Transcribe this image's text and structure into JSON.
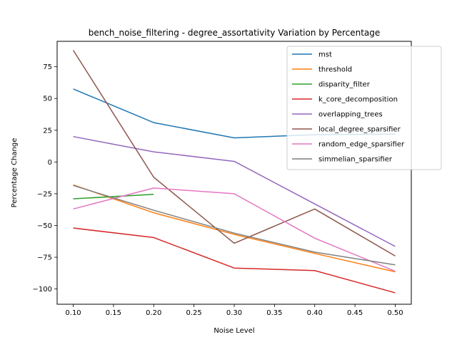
{
  "chart_data": {
    "type": "line",
    "title": "bench_noise_filtering - degree_assortativity Variation by Percentage",
    "xlabel": "Noise Level",
    "ylabel": "Percentage Change",
    "xlim": [
      0.08,
      0.52
    ],
    "ylim": [
      -112,
      95
    ],
    "xticks": [
      0.1,
      0.15,
      0.2,
      0.25,
      0.3,
      0.35,
      0.4,
      0.45,
      0.5
    ],
    "xtick_labels": [
      "0.10",
      "0.15",
      "0.20",
      "0.25",
      "0.30",
      "0.35",
      "0.40",
      "0.45",
      "0.50"
    ],
    "yticks": [
      -100,
      -75,
      -50,
      -25,
      0,
      25,
      50,
      75
    ],
    "ytick_labels": [
      "−100",
      "−75",
      "−50",
      "−25",
      "0",
      "25",
      "50",
      "75"
    ],
    "grid": false,
    "legend_position": "top-right",
    "series": [
      {
        "name": "mst",
        "color": "#1f77b4",
        "x": [
          0.1,
          0.2,
          0.3,
          0.4,
          0.5
        ],
        "y": [
          57.5,
          31,
          19,
          21.5,
          22
        ]
      },
      {
        "name": "threshold",
        "color": "#ff7f0e",
        "x": [
          0.1,
          0.2,
          0.3,
          0.4,
          0.5
        ],
        "y": [
          -18,
          -40,
          -57,
          -72,
          -86.5
        ]
      },
      {
        "name": "disparity_filter",
        "color": "#2ca02c",
        "x": [
          0.1,
          0.2
        ],
        "y": [
          -29,
          -25.5
        ]
      },
      {
        "name": "k_core_decomposition",
        "color": "#d62728",
        "x": [
          0.1,
          0.2,
          0.3,
          0.4,
          0.5
        ],
        "y": [
          -52,
          -59.5,
          -83.5,
          -85.5,
          -103
        ]
      },
      {
        "name": "overlapping_trees",
        "color": "#9467bd",
        "x": [
          0.1,
          0.2,
          0.3,
          0.4,
          0.5
        ],
        "y": [
          20,
          8,
          0.5,
          -33,
          -66.5
        ]
      },
      {
        "name": "local_degree_sparsifier",
        "color": "#8c564b",
        "x": [
          0.1,
          0.2,
          0.3,
          0.4,
          0.5
        ],
        "y": [
          88,
          -12,
          -64,
          -37,
          -74
        ]
      },
      {
        "name": "random_edge_sparsifier",
        "color": "#e377c2",
        "x": [
          0.1,
          0.2,
          0.3,
          0.4,
          0.5
        ],
        "y": [
          -37,
          -20.5,
          -25,
          -60,
          -86
        ]
      },
      {
        "name": "simmelian_sparsifier",
        "color": "#7f7f7f",
        "x": [
          0.1,
          0.2,
          0.3,
          0.4,
          0.5
        ],
        "y": [
          -18.5,
          -38,
          -56,
          -71,
          -81
        ]
      }
    ]
  }
}
